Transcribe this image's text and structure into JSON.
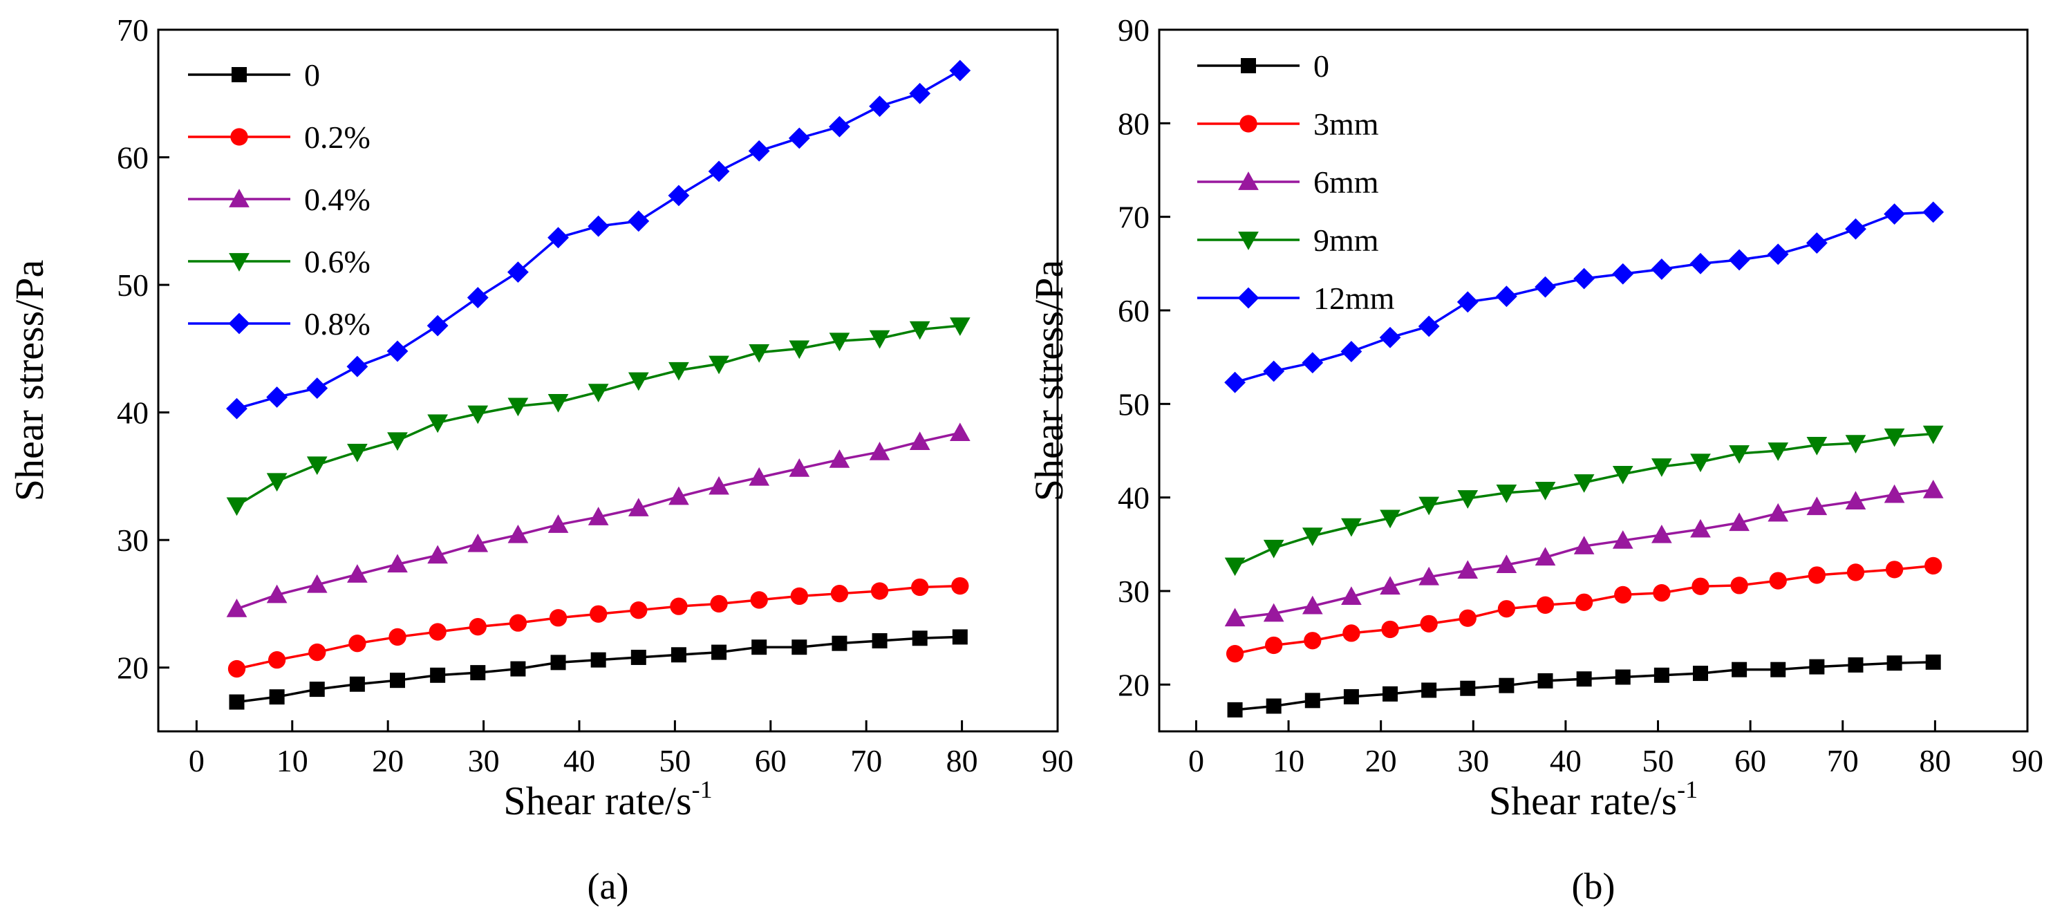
{
  "chart_data": [
    {
      "type": "line",
      "panel_label": "(a)",
      "xlabel": "Shear rate/s",
      "xlabel_sup": "-1",
      "ylabel": "Shear stress/Pa",
      "xlim": [
        -4,
        90
      ],
      "ylim": [
        15,
        70
      ],
      "xticks": [
        0,
        10,
        20,
        30,
        40,
        50,
        60,
        70,
        80,
        90
      ],
      "yticks": [
        20,
        30,
        40,
        50,
        60,
        70
      ],
      "legend_position": "top-left",
      "x": [
        4.2,
        8.4,
        12.6,
        16.8,
        21,
        25.2,
        29.4,
        33.6,
        37.8,
        42,
        46.2,
        50.4,
        54.6,
        58.8,
        63,
        67.2,
        71.4,
        75.6,
        79.8
      ],
      "series": [
        {
          "name": "0",
          "color": "#000000",
          "marker": "square",
          "values": [
            17.3,
            17.7,
            18.3,
            18.7,
            19.0,
            19.4,
            19.6,
            19.9,
            20.4,
            20.6,
            20.8,
            21.0,
            21.2,
            21.6,
            21.6,
            21.9,
            22.1,
            22.3,
            22.4
          ]
        },
        {
          "name": "0.2%",
          "color": "#ff0000",
          "marker": "circle",
          "values": [
            19.9,
            20.6,
            21.2,
            21.9,
            22.4,
            22.8,
            23.2,
            23.5,
            23.9,
            24.2,
            24.5,
            24.8,
            25.0,
            25.3,
            25.6,
            25.8,
            26.0,
            26.3,
            26.4
          ]
        },
        {
          "name": "0.4%",
          "color": "#99189e",
          "marker": "triangle-up",
          "values": [
            24.6,
            25.7,
            26.5,
            27.3,
            28.1,
            28.8,
            29.7,
            30.4,
            31.2,
            31.8,
            32.5,
            33.4,
            34.2,
            34.9,
            35.6,
            36.3,
            36.9,
            37.7,
            38.4
          ]
        },
        {
          "name": "0.6%",
          "color": "#008000",
          "marker": "triangle-down",
          "values": [
            32.7,
            34.6,
            35.9,
            36.9,
            37.8,
            39.2,
            39.9,
            40.5,
            40.8,
            41.6,
            42.5,
            43.3,
            43.8,
            44.7,
            45.0,
            45.6,
            45.8,
            46.5,
            46.8
          ]
        },
        {
          "name": "0.8%",
          "color": "#0000ff",
          "marker": "diamond",
          "values": [
            40.3,
            41.2,
            41.9,
            43.6,
            44.8,
            46.8,
            49.0,
            51.0,
            53.7,
            54.6,
            55.0,
            57.0,
            58.9,
            60.5,
            61.5,
            62.4,
            64.0,
            65.0,
            66.8
          ]
        }
      ]
    },
    {
      "type": "line",
      "panel_label": "(b)",
      "xlabel": "Shear rate/s",
      "xlabel_sup": "-1",
      "ylabel": "Shear stress/Pa",
      "xlim": [
        -4,
        90
      ],
      "ylim": [
        15,
        90
      ],
      "xticks": [
        0,
        10,
        20,
        30,
        40,
        50,
        60,
        70,
        80,
        90
      ],
      "yticks": [
        20,
        30,
        40,
        50,
        60,
        70,
        80,
        90
      ],
      "legend_position": "top-left",
      "x": [
        4.2,
        8.4,
        12.6,
        16.8,
        21,
        25.2,
        29.4,
        33.6,
        37.8,
        42,
        46.2,
        50.4,
        54.6,
        58.8,
        63,
        67.2,
        71.4,
        75.6,
        79.8
      ],
      "series": [
        {
          "name": "0",
          "color": "#000000",
          "marker": "square",
          "values": [
            17.3,
            17.7,
            18.3,
            18.7,
            19.0,
            19.4,
            19.6,
            19.9,
            20.4,
            20.6,
            20.8,
            21.0,
            21.2,
            21.6,
            21.6,
            21.9,
            22.1,
            22.3,
            22.4
          ]
        },
        {
          "name": "3mm",
          "color": "#ff0000",
          "marker": "circle",
          "values": [
            23.3,
            24.2,
            24.7,
            25.5,
            25.9,
            26.5,
            27.1,
            28.1,
            28.5,
            28.8,
            29.6,
            29.8,
            30.5,
            30.6,
            31.1,
            31.7,
            32.0,
            32.3,
            32.7
          ]
        },
        {
          "name": "6mm",
          "color": "#99189e",
          "marker": "triangle-up",
          "values": [
            27.1,
            27.6,
            28.4,
            29.4,
            30.5,
            31.5,
            32.2,
            32.8,
            33.6,
            34.8,
            35.4,
            36.0,
            36.6,
            37.3,
            38.3,
            39.0,
            39.6,
            40.3,
            40.8
          ]
        },
        {
          "name": "9mm",
          "color": "#008000",
          "marker": "triangle-down",
          "values": [
            32.7,
            34.6,
            35.9,
            36.9,
            37.8,
            39.2,
            39.9,
            40.5,
            40.8,
            41.6,
            42.5,
            43.3,
            43.8,
            44.7,
            45.0,
            45.6,
            45.8,
            46.5,
            46.8
          ]
        },
        {
          "name": "12mm",
          "color": "#0000ff",
          "marker": "diamond",
          "values": [
            52.3,
            53.5,
            54.4,
            55.6,
            57.1,
            58.3,
            60.9,
            61.5,
            62.5,
            63.4,
            63.9,
            64.4,
            65.0,
            65.4,
            66.0,
            67.2,
            68.7,
            70.3,
            70.5
          ]
        }
      ]
    }
  ]
}
